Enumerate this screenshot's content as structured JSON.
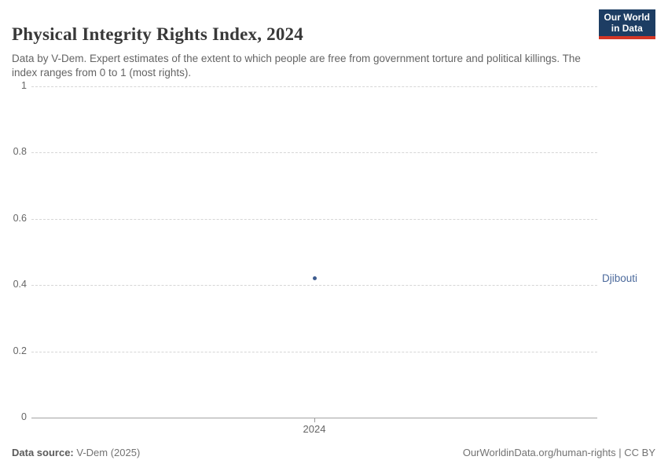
{
  "header": {
    "title": "Physical Integrity Rights Index, 2024",
    "subtitle": "Data by V-Dem. Expert estimates of the extent to which people are free from government torture and political killings. The index ranges from 0 to 1 (most rights).",
    "logo": {
      "line1": "Our World",
      "line2": "in Data",
      "bg_color": "#1d3d63",
      "accent_color": "#d43625"
    }
  },
  "chart_data": {
    "type": "scatter",
    "title": "Physical Integrity Rights Index, 2024",
    "x": [
      2024
    ],
    "series": [
      {
        "name": "Djibouti",
        "values": [
          0.42
        ]
      }
    ],
    "xlabel": "",
    "ylabel": "",
    "ylim": [
      0,
      1
    ],
    "yticks": [
      0,
      0.2,
      0.4,
      0.6,
      0.8,
      1
    ],
    "xticks": [
      "2024"
    ],
    "grid": true,
    "legend_position": "right-of-point",
    "point_color": "#3e5c8f",
    "entity_label_color": "#4c6a9c"
  },
  "footer": {
    "source_label": "Data source:",
    "source_value": "V-Dem (2025)",
    "credit": "OurWorldinData.org/human-rights | CC BY"
  }
}
